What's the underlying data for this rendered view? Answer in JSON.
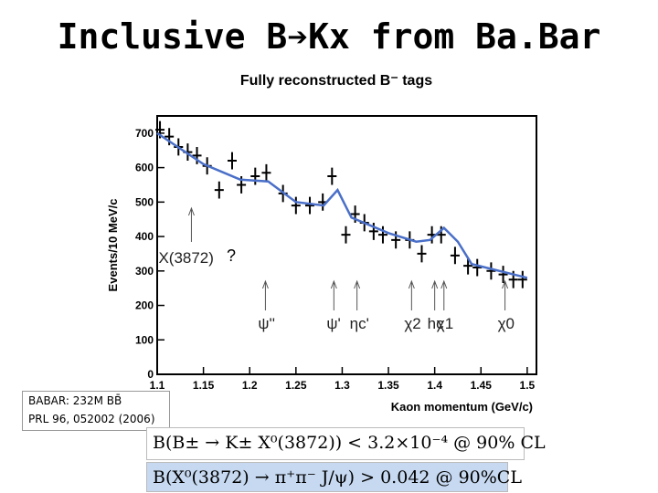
{
  "title": "Inclusive B➔Kx from Ba.Bar",
  "subtitle": "Fully reconstructed B⁻ tags",
  "notes": [
    "BABAR: 232M BB̄",
    "PRL 96, 052002 (2006)"
  ],
  "formulas": [
    "B(B± → K± X⁰(3872)) < 3.2×10⁻⁴ @ 90% CL",
    "B(X⁰(3872) → π⁺π⁻ J/ψ) > 0.042 @ 90%CL"
  ],
  "chart_data": {
    "type": "errorbar",
    "xlabel": "Kaon momentum (GeV/c)",
    "ylabel": "Events/10 MeV/c",
    "xlim": [
      1.1,
      1.51
    ],
    "ylim": [
      0,
      750
    ],
    "xticks": [
      1.1,
      1.15,
      1.2,
      1.25,
      1.3,
      1.35,
      1.4,
      1.45,
      1.5
    ],
    "yticks": [
      0,
      100,
      200,
      300,
      400,
      500,
      600,
      700
    ],
    "series": [
      {
        "name": "Data",
        "color": "#000000",
        "x": [
          1.103,
          1.113,
          1.123,
          1.133,
          1.143,
          1.154,
          1.167,
          1.181,
          1.191,
          1.206,
          1.218,
          1.236,
          1.25,
          1.265,
          1.279,
          1.289,
          1.304,
          1.314,
          1.324,
          1.334,
          1.344,
          1.358,
          1.373,
          1.386,
          1.397,
          1.407,
          1.422,
          1.436,
          1.446,
          1.461,
          1.474,
          1.485,
          1.495
        ],
        "values": [
          710,
          690,
          660,
          645,
          635,
          605,
          535,
          620,
          550,
          575,
          585,
          525,
          490,
          490,
          500,
          575,
          405,
          465,
          440,
          415,
          405,
          390,
          390,
          350,
          405,
          405,
          345,
          315,
          310,
          300,
          290,
          275,
          275
        ],
        "errors": [
          25,
          25,
          25,
          25,
          25,
          25,
          25,
          25,
          25,
          25,
          25,
          25,
          25,
          25,
          25,
          25,
          25,
          25,
          25,
          25,
          25,
          25,
          25,
          25,
          25,
          25,
          25,
          25,
          25,
          25,
          25,
          25,
          25
        ]
      },
      {
        "name": "Fit",
        "color": "#4a6fc8",
        "x": [
          1.1,
          1.15,
          1.19,
          1.22,
          1.25,
          1.28,
          1.295,
          1.31,
          1.35,
          1.38,
          1.395,
          1.41,
          1.425,
          1.44,
          1.5
        ],
        "values": [
          700,
          610,
          565,
          560,
          500,
          490,
          535,
          455,
          410,
          385,
          390,
          425,
          385,
          320,
          280
        ]
      }
    ],
    "annotations": [
      {
        "text": "X(3872)",
        "x": 1.137
      },
      {
        "text": "?",
        "x": 1.185
      },
      {
        "text": "ψ''",
        "x": 1.217
      },
      {
        "text": "ψ'",
        "x": 1.291
      },
      {
        "text": "ηc'",
        "x": 1.316
      },
      {
        "text": "χ2",
        "x": 1.375
      },
      {
        "text": "hc",
        "x": 1.4
      },
      {
        "text": "χ1",
        "x": 1.41
      },
      {
        "text": "χ0",
        "x": 1.476
      }
    ]
  }
}
